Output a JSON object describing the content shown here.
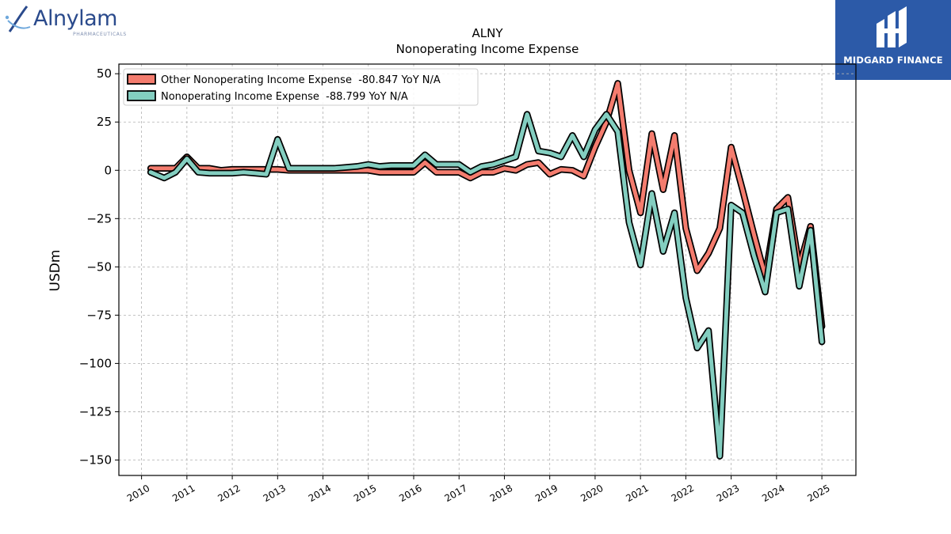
{
  "branding": {
    "left_logo_text": "Alnylam",
    "left_logo_subtext": "PHARMACEUTICALS",
    "right_logo_text": "MIDGARD FINANCE",
    "right_logo_color": "#2c5aa8"
  },
  "chart_data": {
    "type": "line",
    "title": "ALNY",
    "subtitle": "Nonoperating Income Expense",
    "xlabel": "",
    "ylabel": "USDm",
    "xlim": [
      2009.5,
      2025.75
    ],
    "ylim": [
      -158,
      55
    ],
    "x_ticks": [
      "2010",
      "2011",
      "2012",
      "2013",
      "2014",
      "2015",
      "2016",
      "2017",
      "2018",
      "2019",
      "2020",
      "2021",
      "2022",
      "2023",
      "2024",
      "2025"
    ],
    "y_ticks": [
      50,
      25,
      0,
      -25,
      -50,
      -75,
      -100,
      -125,
      -150
    ],
    "y_tick_labels": [
      "50",
      "25",
      "0",
      "−25",
      "−50",
      "−75",
      "−100",
      "−125",
      "−150"
    ],
    "grid": true,
    "legend_position": "top-left",
    "series": [
      {
        "name": "Other Nonoperating Income Expense  -80.847 YoY N/A",
        "color": "#f47c6e",
        "points": [
          [
            2010.2,
            1
          ],
          [
            2010.5,
            1
          ],
          [
            2010.75,
            1
          ],
          [
            2011.0,
            7
          ],
          [
            2011.25,
            1
          ],
          [
            2011.5,
            1
          ],
          [
            2011.75,
            0
          ],
          [
            2012.0,
            0.5
          ],
          [
            2012.25,
            0.5
          ],
          [
            2012.5,
            0.5
          ],
          [
            2012.75,
            0.5
          ],
          [
            2013.0,
            0.5
          ],
          [
            2013.25,
            0
          ],
          [
            2013.5,
            0
          ],
          [
            2013.75,
            0
          ],
          [
            2014.0,
            0
          ],
          [
            2014.25,
            0
          ],
          [
            2014.5,
            0
          ],
          [
            2014.75,
            0
          ],
          [
            2015.0,
            0
          ],
          [
            2015.25,
            -1
          ],
          [
            2015.5,
            -1
          ],
          [
            2015.75,
            -1
          ],
          [
            2016.0,
            -1
          ],
          [
            2016.25,
            4
          ],
          [
            2016.5,
            -1
          ],
          [
            2016.75,
            -1
          ],
          [
            2017.0,
            -1
          ],
          [
            2017.25,
            -4
          ],
          [
            2017.5,
            -1
          ],
          [
            2017.75,
            -1
          ],
          [
            2018.0,
            1
          ],
          [
            2018.25,
            0
          ],
          [
            2018.5,
            3
          ],
          [
            2018.75,
            4
          ],
          [
            2019.0,
            -2
          ],
          [
            2019.25,
            0.5
          ],
          [
            2019.5,
            0
          ],
          [
            2019.75,
            -3
          ],
          [
            2020.0,
            12
          ],
          [
            2020.25,
            25
          ],
          [
            2020.5,
            45
          ],
          [
            2020.75,
            0
          ],
          [
            2021.0,
            -22
          ],
          [
            2021.25,
            19
          ],
          [
            2021.5,
            -10
          ],
          [
            2021.75,
            18
          ],
          [
            2022.0,
            -30
          ],
          [
            2022.25,
            -52
          ],
          [
            2022.5,
            -43
          ],
          [
            2022.75,
            -30
          ],
          [
            2023.0,
            12
          ],
          [
            2023.25,
            -10
          ],
          [
            2023.5,
            -33
          ],
          [
            2023.75,
            -55
          ],
          [
            2024.0,
            -20
          ],
          [
            2024.25,
            -14
          ],
          [
            2024.5,
            -50
          ],
          [
            2024.75,
            -29
          ],
          [
            2025.0,
            -80.847
          ]
        ]
      },
      {
        "name": "Nonoperating Income Expense  -88.799 YoY N/A",
        "color": "#83cec0",
        "points": [
          [
            2010.2,
            -1
          ],
          [
            2010.5,
            -4
          ],
          [
            2010.75,
            -1
          ],
          [
            2011.0,
            6
          ],
          [
            2011.25,
            -1
          ],
          [
            2011.5,
            -1.5
          ],
          [
            2011.75,
            -1.5
          ],
          [
            2012.0,
            -1.5
          ],
          [
            2012.25,
            -1
          ],
          [
            2012.5,
            -1.5
          ],
          [
            2012.75,
            -2
          ],
          [
            2013.0,
            16
          ],
          [
            2013.25,
            1
          ],
          [
            2013.5,
            1
          ],
          [
            2013.75,
            1
          ],
          [
            2014.0,
            1
          ],
          [
            2014.25,
            1
          ],
          [
            2014.5,
            1.5
          ],
          [
            2014.75,
            2
          ],
          [
            2015.0,
            3
          ],
          [
            2015.25,
            2
          ],
          [
            2015.5,
            2.5
          ],
          [
            2015.75,
            2.5
          ],
          [
            2016.0,
            2.5
          ],
          [
            2016.25,
            8
          ],
          [
            2016.5,
            3
          ],
          [
            2016.75,
            3
          ],
          [
            2017.0,
            3
          ],
          [
            2017.25,
            -1
          ],
          [
            2017.5,
            2
          ],
          [
            2017.75,
            3
          ],
          [
            2018.0,
            5
          ],
          [
            2018.25,
            7
          ],
          [
            2018.5,
            29
          ],
          [
            2018.75,
            10
          ],
          [
            2019.0,
            9
          ],
          [
            2019.25,
            7
          ],
          [
            2019.5,
            18
          ],
          [
            2019.75,
            7
          ],
          [
            2020.0,
            21
          ],
          [
            2020.25,
            29
          ],
          [
            2020.5,
            20
          ],
          [
            2020.75,
            -27
          ],
          [
            2021.0,
            -49
          ],
          [
            2021.25,
            -12
          ],
          [
            2021.5,
            -42
          ],
          [
            2021.75,
            -22
          ],
          [
            2022.0,
            -66
          ],
          [
            2022.25,
            -92
          ],
          [
            2022.5,
            -83
          ],
          [
            2022.75,
            -148
          ],
          [
            2023.0,
            -18
          ],
          [
            2023.25,
            -22
          ],
          [
            2023.5,
            -44
          ],
          [
            2023.75,
            -63
          ],
          [
            2024.0,
            -22
          ],
          [
            2024.25,
            -20
          ],
          [
            2024.5,
            -60
          ],
          [
            2024.75,
            -31
          ],
          [
            2025.0,
            -88.799
          ]
        ]
      }
    ]
  }
}
